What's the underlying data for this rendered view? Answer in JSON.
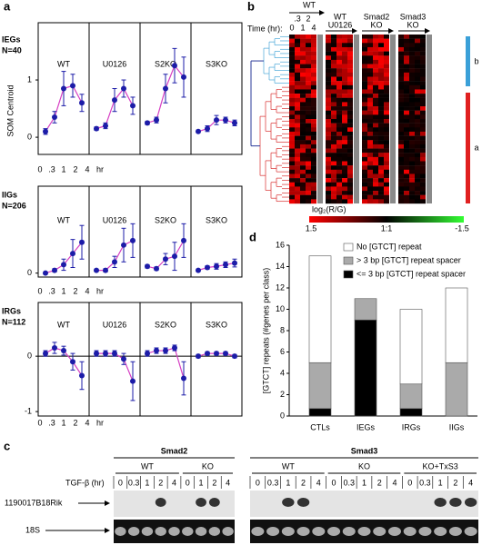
{
  "panel_labels": [
    "a",
    "b",
    "c",
    "d"
  ],
  "chart_data": [
    {
      "type": "line",
      "y_label": "SOM Centroid",
      "categories": [
        "0",
        ".3",
        "1",
        "2",
        "4"
      ],
      "x_unit": "hr",
      "line_color": "#d63fc3",
      "marker_color": "#1c1ca8",
      "rows": [
        {
          "label": "IEGs",
          "n": "N=40",
          "ylim": [
            -0.3,
            2
          ],
          "yticks": [
            0,
            1
          ],
          "plots": [
            {
              "title": "WT",
              "values": [
                0.1,
                0.35,
                0.85,
                0.9,
                0.6
              ],
              "errors": [
                0.05,
                0.1,
                0.3,
                0.2,
                0.15
              ]
            },
            {
              "title": "U0126",
              "values": [
                0.15,
                0.2,
                0.65,
                0.85,
                0.55
              ],
              "errors": [
                0.03,
                0.05,
                0.2,
                0.15,
                0.15
              ]
            },
            {
              "title": "S2KO",
              "values": [
                0.25,
                0.3,
                0.85,
                1.25,
                1.05
              ],
              "errors": [
                0.03,
                0.05,
                0.25,
                0.3,
                0.35
              ]
            },
            {
              "title": "S3KO",
              "values": [
                0.1,
                0.15,
                0.3,
                0.3,
                0.25
              ],
              "errors": [
                0.02,
                0.05,
                0.08,
                0.05,
                0.05
              ]
            }
          ]
        },
        {
          "label": "IIGs",
          "n": "N=206",
          "ylim": [
            -0.07,
            1.55
          ],
          "yticks": [
            0
          ],
          "plots": [
            {
              "title": "WT",
              "values": [
                0,
                0.05,
                0.15,
                0.35,
                0.55
              ],
              "errors": [
                0.02,
                0.03,
                0.1,
                0.25,
                0.3
              ]
            },
            {
              "title": "U0126",
              "values": [
                0.05,
                0.05,
                0.2,
                0.5,
                0.58
              ],
              "errors": [
                0.02,
                0.03,
                0.1,
                0.3,
                0.3
              ]
            },
            {
              "title": "S2KO",
              "values": [
                0.12,
                0.08,
                0.25,
                0.3,
                0.58
              ],
              "errors": [
                0.03,
                0.03,
                0.1,
                0.25,
                0.3
              ]
            },
            {
              "title": "S3KO",
              "values": [
                0.05,
                0.1,
                0.12,
                0.15,
                0.18
              ],
              "errors": [
                0.02,
                0.03,
                0.05,
                0.05,
                0.07
              ]
            }
          ]
        },
        {
          "label": "IRGs",
          "n": "N=112",
          "ylim": [
            -1.08,
            0.97
          ],
          "yticks": [
            -1,
            0
          ],
          "zero_line": true,
          "plots": [
            {
              "title": "WT",
              "values": [
                0.05,
                0.15,
                0.1,
                -0.1,
                -0.35
              ],
              "errors": [
                0.05,
                0.1,
                0.08,
                0.15,
                0.25
              ]
            },
            {
              "title": "U0126",
              "values": [
                0.05,
                0.05,
                0.05,
                -0.05,
                -0.45
              ],
              "errors": [
                0.05,
                0.05,
                0.05,
                0.1,
                0.35
              ]
            },
            {
              "title": "S2KO",
              "values": [
                0.05,
                0.1,
                0.1,
                0.15,
                -0.4
              ],
              "errors": [
                0.05,
                0.05,
                0.05,
                0.05,
                0.3
              ]
            },
            {
              "title": "S3KO",
              "values": [
                0,
                0.05,
                0.05,
                0.05,
                0
              ],
              "errors": [
                0.03,
                0.03,
                0.03,
                0.03,
                0.03
              ]
            }
          ]
        }
      ]
    },
    {
      "type": "bar",
      "stacked": true,
      "categories": [
        "CTLs",
        "IEGs",
        "IRGs",
        "IIGs"
      ],
      "y_label": "[GTCT] repeats (#genes per class)",
      "ylim": [
        0,
        16
      ],
      "yticks": [
        0,
        2,
        4,
        6,
        8,
        10,
        12,
        14,
        16
      ],
      "series": [
        {
          "name": "<= 3 bp [GTCT] repeat spacer",
          "color": "#000000",
          "values": [
            0.7,
            9,
            0.7,
            0
          ]
        },
        {
          "name": "> 3 bp [GTCT] repeat spacer",
          "color": "#aaaaaa",
          "values": [
            4.3,
            2,
            2.3,
            5
          ]
        },
        {
          "name": "No [GTCT] repeat",
          "color": "#ffffff",
          "values": [
            10,
            0,
            7,
            7
          ]
        }
      ]
    }
  ],
  "heatmap": {
    "time_label": "Time (hr):",
    "times": [
      "0",
      ".3",
      "1",
      "2",
      "4"
    ],
    "groups": [
      {
        "label": [
          "WT"
        ]
      },
      {
        "label": [
          "WT",
          "U0126"
        ]
      },
      {
        "label": [
          "Smad2",
          "KO"
        ]
      },
      {
        "label": [
          "Smad3",
          "KO"
        ]
      }
    ],
    "clusters": [
      "b",
      "a"
    ],
    "scale_label": "log₂(R/G)",
    "scale_ticks": [
      "1.5",
      "1:1",
      "-1.5"
    ]
  },
  "blot": {
    "time_label": "TGF-β (hr)",
    "rows": [
      "1190017B18Rik",
      "18S"
    ],
    "proteins": [
      {
        "name": "Smad2",
        "groups": [
          {
            "label": "WT",
            "lanes": [
              "0",
              "0.3",
              "1",
              "2",
              "4"
            ]
          },
          {
            "label": "KO",
            "lanes": [
              "0",
              "1",
              "2",
              "4"
            ]
          }
        ]
      },
      {
        "name": "Smad3",
        "groups": [
          {
            "label": "WT",
            "lanes": [
              "0",
              "0.3",
              "1",
              "2",
              "4"
            ]
          },
          {
            "label": "KO",
            "lanes": [
              "0",
              "0.3",
              "1",
              "2",
              "4"
            ]
          },
          {
            "label": "KO+TxS3",
            "lanes": [
              "0",
              "0.3",
              "1",
              "2",
              "4"
            ]
          }
        ]
      }
    ]
  }
}
